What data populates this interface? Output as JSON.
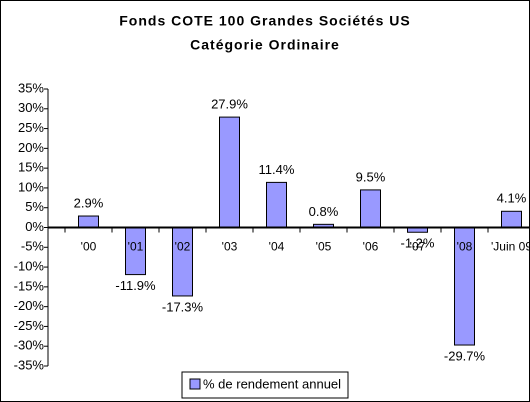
{
  "chart_data": {
    "type": "bar",
    "title": "Fonds COTE 100 Grandes Sociétés US",
    "subtitle": "Catégorie Ordinaire",
    "categories": [
      "'00",
      "'01",
      "'02",
      "'03",
      "'04",
      "'05",
      "'06",
      "'07",
      "'08",
      "'Juin 09"
    ],
    "series": [
      {
        "name": "% de rendement annuel",
        "color": "#9999ff",
        "values": [
          2.9,
          -11.9,
          -17.3,
          27.9,
          11.4,
          0.8,
          9.5,
          -1.2,
          -29.7,
          4.1
        ],
        "value_labels": [
          "2.9%",
          "-11.9%",
          "-17.3%",
          "27.9%",
          "11.4%",
          "0.8%",
          "9.5%",
          "-1.2%",
          "-29.7%",
          "4.1%"
        ]
      }
    ],
    "ylim": [
      -35,
      35
    ],
    "yticks": [
      {
        "value": -35,
        "label": "-35%"
      },
      {
        "value": -30,
        "label": "-30%"
      },
      {
        "value": -25,
        "label": "-25%"
      },
      {
        "value": -20,
        "label": "-20%"
      },
      {
        "value": -15,
        "label": "-15%"
      },
      {
        "value": -10,
        "label": "-10%"
      },
      {
        "value": -5,
        "label": "-5%"
      },
      {
        "value": 0,
        "label": "0%"
      },
      {
        "value": 5,
        "label": "5%"
      },
      {
        "value": 10,
        "label": "10%"
      },
      {
        "value": 15,
        "label": "15%"
      },
      {
        "value": 20,
        "label": "20%"
      },
      {
        "value": 25,
        "label": "25%"
      },
      {
        "value": 30,
        "label": "30%"
      },
      {
        "value": 35,
        "label": "35%"
      }
    ],
    "legend": "bottom"
  }
}
